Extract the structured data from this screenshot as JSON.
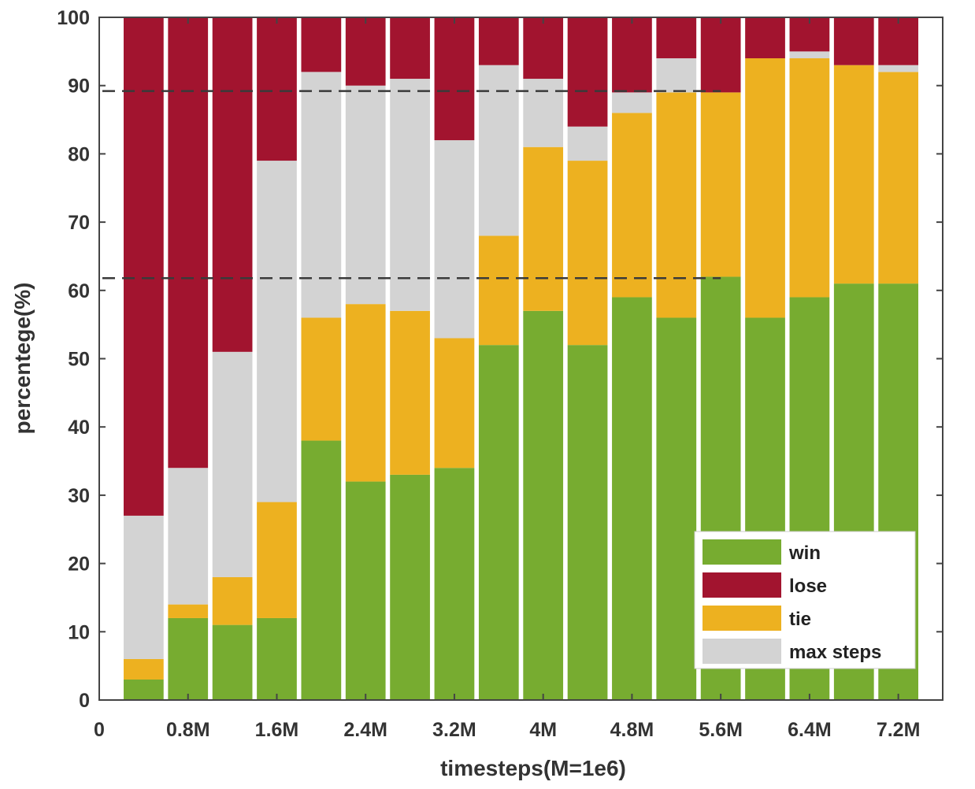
{
  "chart_data": {
    "type": "bar",
    "stacked": true,
    "title": "",
    "xlabel": "timesteps(M=1e6)",
    "ylabel": "percentege(%)",
    "ylim": [
      0,
      100
    ],
    "yticks": [
      0,
      10,
      20,
      30,
      40,
      50,
      60,
      70,
      80,
      90,
      100
    ],
    "xlim": [
      0,
      7.6
    ],
    "xticks": [
      {
        "value": 0,
        "label": "0"
      },
      {
        "value": 0.8,
        "label": "0.8M"
      },
      {
        "value": 1.6,
        "label": "1.6M"
      },
      {
        "value": 2.4,
        "label": "2.4M"
      },
      {
        "value": 3.2,
        "label": "3.2M"
      },
      {
        "value": 4.0,
        "label": "4M"
      },
      {
        "value": 4.8,
        "label": "4.8M"
      },
      {
        "value": 5.6,
        "label": "5.6M"
      },
      {
        "value": 6.4,
        "label": "6.4M"
      },
      {
        "value": 7.2,
        "label": "7.2M"
      }
    ],
    "x": [
      0.4,
      0.8,
      1.2,
      1.6,
      2.0,
      2.4,
      2.8,
      3.2,
      3.6,
      4.0,
      4.4,
      4.8,
      5.2,
      5.6,
      6.0,
      6.4,
      6.8,
      7.2
    ],
    "bar_width": 0.36,
    "series": [
      {
        "name": "win",
        "color": "#77AC30",
        "values": [
          3,
          12,
          11,
          12,
          38,
          32,
          33,
          34,
          52,
          57,
          52,
          59,
          56,
          62,
          56,
          59,
          61,
          61
        ]
      },
      {
        "name": "tie",
        "color": "#EDB120",
        "values": [
          3,
          2,
          7,
          17,
          18,
          26,
          24,
          19,
          16,
          24,
          27,
          27,
          33,
          27,
          38,
          35,
          32,
          31
        ]
      },
      {
        "name": "max steps",
        "color": "#D3D3D3",
        "values": [
          21,
          20,
          33,
          50,
          36,
          32,
          34,
          29,
          25,
          10,
          5,
          3,
          5,
          0,
          0,
          1,
          0,
          1
        ]
      },
      {
        "name": "lose",
        "color": "#A2142F",
        "values": [
          73,
          66,
          49,
          21,
          8,
          10,
          9,
          18,
          7,
          9,
          16,
          11,
          6,
          11,
          6,
          5,
          7,
          7
        ]
      }
    ],
    "reference_lines": [
      {
        "y": 89.2,
        "x_end": 5.6,
        "style": "dashed"
      },
      {
        "y": 61.8,
        "x_end": 5.6,
        "style": "dashed"
      }
    ],
    "legend": {
      "position": "bottom-right",
      "entries": [
        {
          "label": "win",
          "color": "#77AC30"
        },
        {
          "label": "lose",
          "color": "#A2142F"
        },
        {
          "label": "tie",
          "color": "#EDB120"
        },
        {
          "label": "max steps",
          "color": "#D3D3D3"
        }
      ]
    }
  }
}
